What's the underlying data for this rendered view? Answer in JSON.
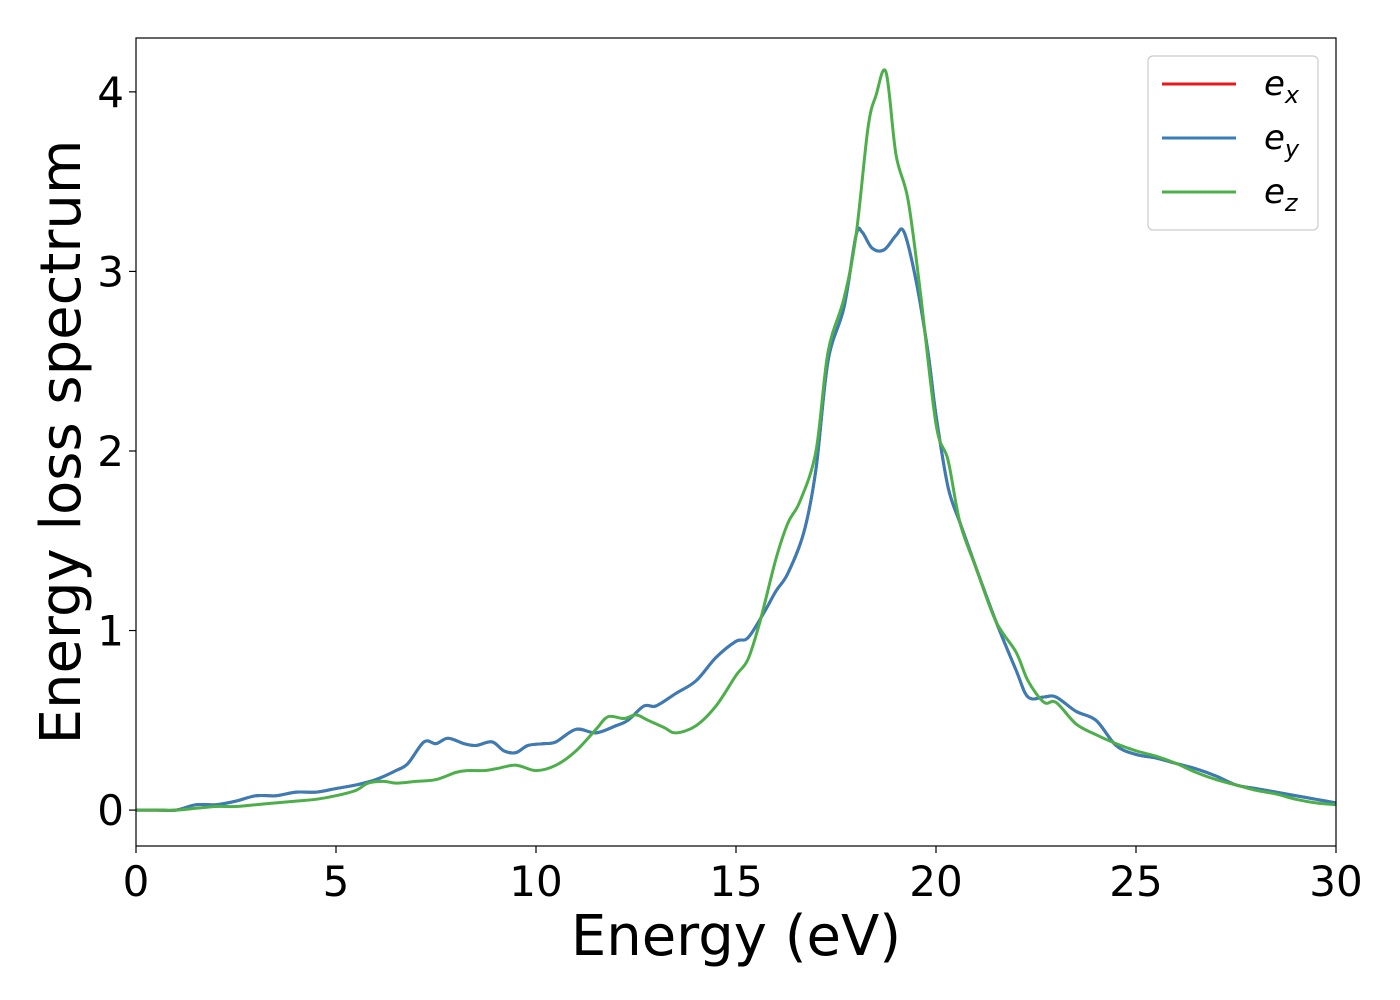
{
  "chart_data": {
    "type": "line",
    "title": "",
    "xlabel": "Energy (eV)",
    "ylabel": "Energy loss spectrum",
    "xlim": [
      0,
      30
    ],
    "ylim": [
      -0.2,
      4.3
    ],
    "xticks": [
      0,
      5,
      10,
      15,
      20,
      25,
      30
    ],
    "yticks": [
      0,
      1,
      2,
      3,
      4
    ],
    "xtick_labels": [
      "0",
      "5",
      "10",
      "15",
      "20",
      "25",
      "30"
    ],
    "ytick_labels": [
      "0",
      "1",
      "2",
      "3",
      "4"
    ],
    "grid": false,
    "legend_position": "top-right",
    "series": [
      {
        "name": "e_x",
        "legend_main": "e",
        "legend_sub": "x",
        "color": "#e41a1c",
        "x": [
          0,
          0.5,
          1.0,
          1.5,
          2.0,
          2.5,
          3.0,
          3.5,
          4.0,
          4.5,
          5.0,
          5.5,
          6.0,
          6.5,
          6.8,
          7.2,
          7.5,
          7.8,
          8.2,
          8.5,
          8.9,
          9.2,
          9.5,
          9.8,
          10.2,
          10.5,
          11.0,
          11.5,
          12.0,
          12.3,
          12.7,
          13.0,
          13.5,
          14.0,
          14.5,
          15.0,
          15.3,
          15.7,
          16.0,
          16.3,
          16.7,
          17.0,
          17.3,
          17.7,
          18.0,
          18.15,
          18.4,
          18.7,
          19.0,
          19.2,
          19.5,
          19.8,
          20.0,
          20.3,
          20.6,
          21.0,
          21.5,
          22.0,
          22.3,
          22.7,
          23.0,
          23.5,
          24.0,
          24.5,
          25.0,
          25.5,
          26.0,
          26.5,
          27.0,
          27.5,
          28.0,
          28.5,
          29.0,
          29.5,
          30.0
        ],
        "y": [
          0.0,
          0.0,
          0.0,
          0.03,
          0.03,
          0.05,
          0.08,
          0.08,
          0.1,
          0.1,
          0.12,
          0.14,
          0.17,
          0.22,
          0.26,
          0.38,
          0.37,
          0.4,
          0.37,
          0.36,
          0.38,
          0.33,
          0.32,
          0.36,
          0.37,
          0.38,
          0.45,
          0.43,
          0.47,
          0.5,
          0.58,
          0.58,
          0.65,
          0.72,
          0.85,
          0.94,
          0.96,
          1.1,
          1.22,
          1.32,
          1.55,
          1.9,
          2.5,
          2.8,
          3.2,
          3.22,
          3.13,
          3.12,
          3.2,
          3.22,
          2.95,
          2.55,
          2.2,
          1.8,
          1.6,
          1.35,
          1.05,
          0.78,
          0.63,
          0.63,
          0.63,
          0.55,
          0.5,
          0.36,
          0.31,
          0.29,
          0.26,
          0.23,
          0.19,
          0.14,
          0.12,
          0.1,
          0.08,
          0.06,
          0.04
        ]
      },
      {
        "name": "e_y",
        "legend_main": "e",
        "legend_sub": "y",
        "color": "#377eb8",
        "x": [
          0,
          0.5,
          1.0,
          1.5,
          2.0,
          2.5,
          3.0,
          3.5,
          4.0,
          4.5,
          5.0,
          5.5,
          6.0,
          6.5,
          6.8,
          7.2,
          7.5,
          7.8,
          8.2,
          8.5,
          8.9,
          9.2,
          9.5,
          9.8,
          10.2,
          10.5,
          11.0,
          11.5,
          12.0,
          12.3,
          12.7,
          13.0,
          13.5,
          14.0,
          14.5,
          15.0,
          15.3,
          15.7,
          16.0,
          16.3,
          16.7,
          17.0,
          17.3,
          17.7,
          18.0,
          18.15,
          18.4,
          18.7,
          19.0,
          19.2,
          19.5,
          19.8,
          20.0,
          20.3,
          20.6,
          21.0,
          21.5,
          22.0,
          22.3,
          22.7,
          23.0,
          23.5,
          24.0,
          24.5,
          25.0,
          25.5,
          26.0,
          26.5,
          27.0,
          27.5,
          28.0,
          28.5,
          29.0,
          29.5,
          30.0
        ],
        "y": [
          0.0,
          0.0,
          0.0,
          0.03,
          0.03,
          0.05,
          0.08,
          0.08,
          0.1,
          0.1,
          0.12,
          0.14,
          0.17,
          0.22,
          0.26,
          0.38,
          0.37,
          0.4,
          0.37,
          0.36,
          0.38,
          0.33,
          0.32,
          0.36,
          0.37,
          0.38,
          0.45,
          0.43,
          0.47,
          0.5,
          0.58,
          0.58,
          0.65,
          0.72,
          0.85,
          0.94,
          0.96,
          1.1,
          1.22,
          1.32,
          1.55,
          1.9,
          2.5,
          2.8,
          3.2,
          3.22,
          3.13,
          3.12,
          3.2,
          3.22,
          2.95,
          2.55,
          2.2,
          1.8,
          1.6,
          1.35,
          1.05,
          0.78,
          0.63,
          0.63,
          0.63,
          0.55,
          0.5,
          0.36,
          0.31,
          0.29,
          0.26,
          0.23,
          0.19,
          0.14,
          0.12,
          0.1,
          0.08,
          0.06,
          0.04
        ]
      },
      {
        "name": "e_z",
        "legend_main": "e",
        "legend_sub": "z",
        "color": "#4daf4a",
        "x": [
          0,
          0.5,
          1.0,
          1.5,
          2.0,
          2.5,
          3.0,
          3.5,
          4.0,
          4.5,
          5.0,
          5.5,
          5.8,
          6.2,
          6.5,
          7.0,
          7.5,
          8.0,
          8.3,
          8.7,
          9.0,
          9.5,
          10.0,
          10.5,
          11.0,
          11.5,
          11.8,
          12.2,
          12.5,
          12.8,
          13.2,
          13.5,
          14.0,
          14.5,
          15.0,
          15.3,
          15.6,
          16.0,
          16.3,
          16.6,
          17.0,
          17.3,
          17.7,
          18.0,
          18.3,
          18.5,
          18.75,
          19.0,
          19.3,
          19.6,
          20.0,
          20.3,
          20.6,
          21.0,
          21.5,
          22.0,
          22.3,
          22.7,
          23.0,
          23.5,
          24.0,
          24.5,
          25.0,
          25.5,
          26.0,
          26.5,
          27.0,
          27.5,
          28.0,
          28.5,
          29.0,
          29.5,
          30.0
        ],
        "y": [
          0.0,
          0.0,
          0.0,
          0.01,
          0.02,
          0.02,
          0.03,
          0.04,
          0.05,
          0.06,
          0.08,
          0.11,
          0.15,
          0.16,
          0.15,
          0.16,
          0.17,
          0.21,
          0.22,
          0.22,
          0.23,
          0.25,
          0.22,
          0.25,
          0.33,
          0.45,
          0.52,
          0.51,
          0.53,
          0.5,
          0.46,
          0.43,
          0.47,
          0.58,
          0.75,
          0.84,
          1.05,
          1.4,
          1.6,
          1.72,
          2.0,
          2.55,
          2.85,
          3.2,
          3.8,
          3.98,
          4.11,
          3.65,
          3.4,
          2.9,
          2.15,
          1.95,
          1.6,
          1.35,
          1.05,
          0.88,
          0.72,
          0.6,
          0.6,
          0.48,
          0.42,
          0.37,
          0.33,
          0.3,
          0.26,
          0.21,
          0.17,
          0.14,
          0.11,
          0.09,
          0.06,
          0.04,
          0.03
        ]
      }
    ]
  }
}
